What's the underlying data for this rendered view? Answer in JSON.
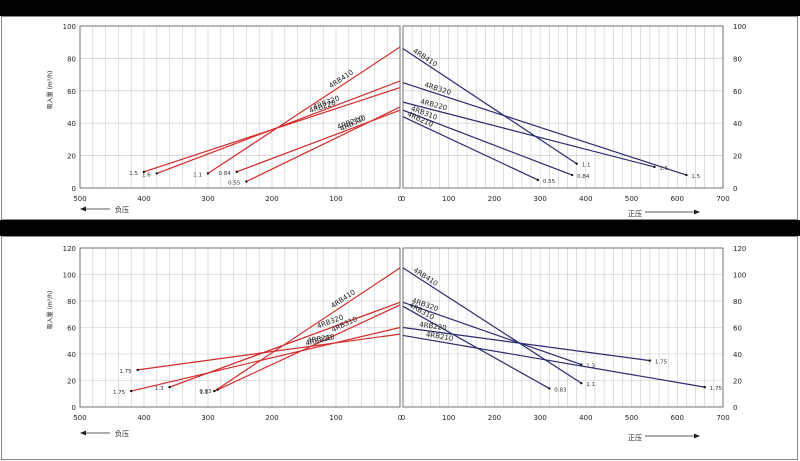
{
  "chart_data": [
    {
      "type": "line",
      "ylabel": "吸入量 (m³/h)",
      "neg_axis_label": "负压",
      "pos_axis_label": "正压",
      "left_panel": {
        "xlim": [
          500,
          0
        ],
        "xticks": [
          500,
          400,
          300,
          200,
          100,
          0
        ]
      },
      "right_panel": {
        "xlim": [
          0,
          700
        ],
        "xticks": [
          0,
          100,
          200,
          300,
          400,
          500,
          600,
          700
        ]
      },
      "ylim": [
        0,
        100
      ],
      "yticks": [
        0,
        20,
        40,
        60,
        80,
        100
      ],
      "grid": true,
      "vacuum_series": [
        {
          "name": "4RB410",
          "points": [
            [
              300,
              9
            ],
            [
              0,
              87
            ]
          ],
          "end_label": "1.1",
          "color": "#d42a2a"
        },
        {
          "name": "4RB320",
          "points": [
            [
              380,
              9
            ],
            [
              0,
              66
            ]
          ],
          "end_label": "1.6",
          "color": "#d42a2a"
        },
        {
          "name": "4RB310",
          "points": [
            [
              240,
              4
            ],
            [
              0,
              50
            ]
          ],
          "end_label": "0.55",
          "color": "#d42a2a"
        },
        {
          "name": "4RB220",
          "points": [
            [
              400,
              10
            ],
            [
              0,
              62
            ]
          ],
          "end_label": "1.5",
          "color": "#d42a2a"
        },
        {
          "name": "4RB210",
          "points": [
            [
              255,
              10
            ],
            [
              0,
              48
            ]
          ],
          "end_label": "0.84",
          "color": "#d42a2a"
        }
      ],
      "pressure_series": [
        {
          "name": "4RB410",
          "points": [
            [
              0,
              86
            ],
            [
              380,
              15
            ]
          ],
          "end_label": "1.1",
          "color": "#2a2a70"
        },
        {
          "name": "4RB320",
          "points": [
            [
              0,
              65
            ],
            [
              620,
              8
            ]
          ],
          "end_label": "1.5",
          "color": "#2a2a70"
        },
        {
          "name": "4RB310",
          "points": [
            [
              0,
              48
            ],
            [
              370,
              8
            ]
          ],
          "end_label": "0.84",
          "color": "#2a2a70"
        },
        {
          "name": "4RB220",
          "points": [
            [
              0,
              53
            ],
            [
              550,
              13
            ]
          ],
          "end_label": "1.5",
          "color": "#2a2a70"
        },
        {
          "name": "4RB210",
          "points": [
            [
              0,
              44
            ],
            [
              295,
              5
            ]
          ],
          "end_label": "0.55",
          "color": "#2a2a70"
        }
      ]
    },
    {
      "type": "line",
      "ylabel": "吸入量 (m³/h)",
      "neg_axis_label": "负压",
      "pos_axis_label": "正压",
      "left_panel": {
        "xlim": [
          500,
          0
        ],
        "xticks": [
          500,
          400,
          300,
          200,
          100,
          0
        ]
      },
      "right_panel": {
        "xlim": [
          0,
          700
        ],
        "xticks": [
          0,
          100,
          200,
          300,
          400,
          500,
          600,
          700
        ]
      },
      "ylim": [
        0,
        120
      ],
      "yticks": [
        0,
        20,
        40,
        60,
        80,
        100,
        120
      ],
      "grid": true,
      "vacuum_series": [
        {
          "name": "4RB410",
          "points": [
            [
              290,
              12
            ],
            [
              0,
              105
            ]
          ],
          "end_label": "1.1",
          "color": "#d42a2a"
        },
        {
          "name": "4RB320",
          "points": [
            [
              360,
              15
            ],
            [
              0,
              79
            ]
          ],
          "end_label": "1.3",
          "color": "#d42a2a"
        },
        {
          "name": "4RB310",
          "points": [
            [
              285,
              13
            ],
            [
              0,
              77
            ]
          ],
          "end_label": "0.83",
          "color": "#d42a2a"
        },
        {
          "name": "4RB220",
          "points": [
            [
              420,
              12
            ],
            [
              0,
              60
            ]
          ],
          "end_label": "1.75",
          "color": "#d42a2a"
        },
        {
          "name": "4RB210",
          "points": [
            [
              410,
              28
            ],
            [
              0,
              55
            ]
          ],
          "end_label": "1.75",
          "color": "#d42a2a"
        }
      ],
      "pressure_series": [
        {
          "name": "4RB410",
          "points": [
            [
              0,
              105
            ],
            [
              390,
              18
            ]
          ],
          "end_label": "1.1",
          "color": "#2a2a70"
        },
        {
          "name": "4RB320",
          "points": [
            [
              0,
              79
            ],
            [
              390,
              32
            ]
          ],
          "end_label": "1.3",
          "color": "#2a2a70"
        },
        {
          "name": "4RB310",
          "points": [
            [
              0,
              76
            ],
            [
              320,
              14
            ]
          ],
          "end_label": "0.83",
          "color": "#2a2a70"
        },
        {
          "name": "4RB220",
          "points": [
            [
              0,
              60
            ],
            [
              540,
              35
            ]
          ],
          "end_label": "1.75",
          "color": "#2a2a70"
        },
        {
          "name": "4RB210",
          "points": [
            [
              0,
              54
            ],
            [
              660,
              15
            ]
          ],
          "end_label": "1.75",
          "color": "#2a2a70"
        }
      ]
    }
  ]
}
